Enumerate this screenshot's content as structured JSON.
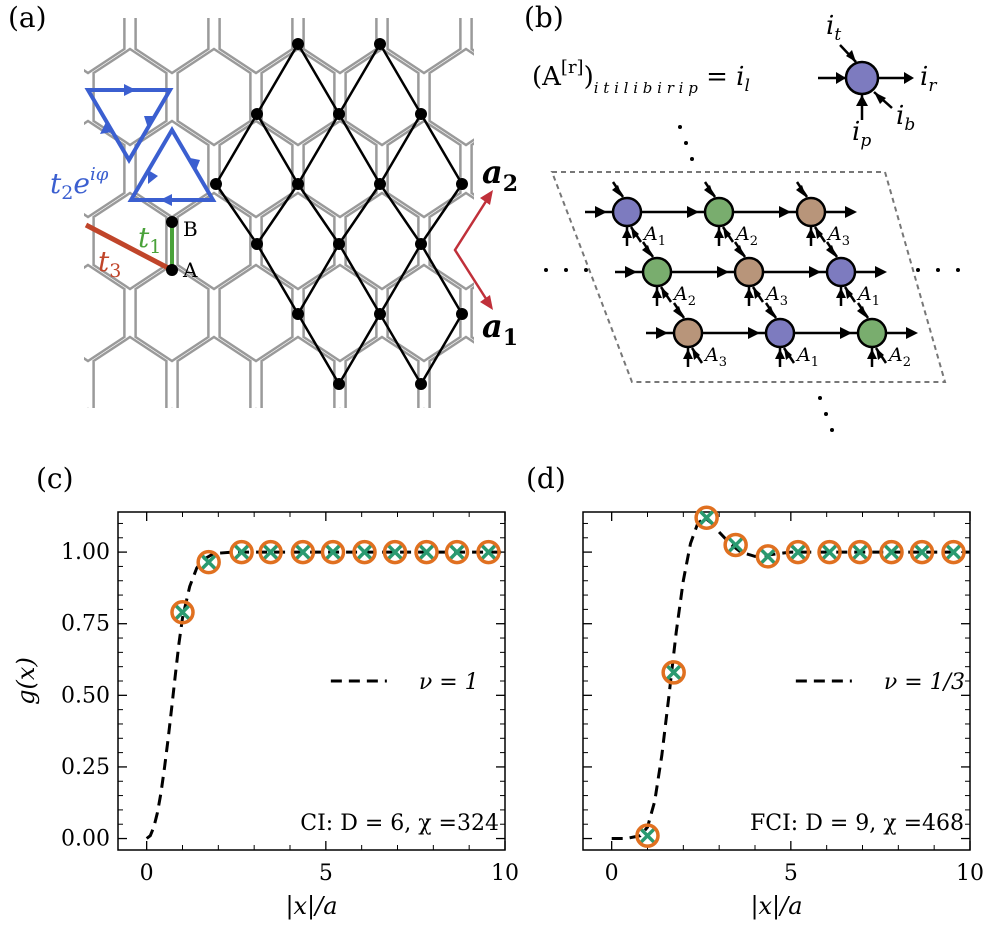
{
  "panels": {
    "a": {
      "label": "(a)"
    },
    "b": {
      "label": "(b)"
    },
    "c": {
      "label": "(c)"
    },
    "d": {
      "label": "(d)"
    }
  },
  "lattice": {
    "hopping_t2_base": "t",
    "hopping_t2_sub": "2",
    "hopping_t2_exp": "e",
    "hopping_t2_sup": "iφ",
    "hopping_t1_base": "t",
    "hopping_t1_sub": "1",
    "hopping_t3_base": "t",
    "hopping_t3_sub": "3",
    "site_a": "A",
    "site_b": "B",
    "vec_a1_base": "a",
    "vec_a1_sub": "1",
    "vec_a2_base": "a",
    "vec_a2_sub": "2",
    "colors": {
      "t1": "#4aa23a",
      "t2": "#3b5fd0",
      "t3": "#c0452a",
      "vec": "#c0303a",
      "hex": "#9a9a9a",
      "diamond": "#000000"
    }
  },
  "tensor_network": {
    "definition_lhs": "(A",
    "definition_sup": "[r]",
    "definition_close": ")",
    "definition_indices": "i t i l i b i r i p",
    "index_t": "i",
    "index_t_sub": "t",
    "index_l": "i",
    "index_l_sub": "l",
    "index_r": "i",
    "index_r_sub": "r",
    "index_b": "i",
    "index_b_sub": "b",
    "index_p": "i",
    "index_p_sub": "p",
    "tensor_labels": [
      [
        "A1",
        "A2",
        "A3"
      ],
      [
        "A2",
        "A3",
        "A1"
      ],
      [
        "A3",
        "A1",
        "A2"
      ]
    ],
    "colors": {
      "A1": "#7d7bbf",
      "A2": "#79ad6e",
      "A3": "#b8957a"
    }
  },
  "chart_data": [
    {
      "type": "line",
      "panel": "(c)",
      "xlabel": "|x|/a",
      "ylabel": "g(x)",
      "xlim": [
        -0.8,
        10
      ],
      "ylim": [
        -0.04,
        1.14
      ],
      "xticks": [
        0,
        5,
        10
      ],
      "yticks": [
        0.0,
        0.25,
        0.5,
        0.75,
        1.0
      ],
      "ytick_labels": [
        "0.00",
        "0.25",
        "0.50",
        "0.75",
        "1.00"
      ],
      "legend": "ν = 1",
      "legend_position": "center-right",
      "annotation": "CI: D = 6, χ =324",
      "curve": {
        "style": "dashed",
        "x": [
          0.0,
          0.1,
          0.2,
          0.3,
          0.4,
          0.5,
          0.6,
          0.7,
          0.8,
          0.9,
          1.0,
          1.2,
          1.4,
          1.6,
          1.8,
          2.0,
          2.3,
          2.6,
          3.0,
          4.0,
          6.0,
          8.0,
          10.0
        ],
        "y": [
          0.0,
          0.01,
          0.04,
          0.09,
          0.16,
          0.25,
          0.35,
          0.46,
          0.57,
          0.68,
          0.77,
          0.88,
          0.945,
          0.975,
          0.99,
          0.996,
          0.999,
          1.0,
          1.0,
          1.0,
          1.0,
          1.0,
          1.0
        ]
      },
      "markers": {
        "x": [
          1.0,
          1.73,
          2.65,
          3.46,
          4.36,
          5.2,
          6.08,
          6.93,
          7.81,
          8.66,
          9.54
        ],
        "y": [
          0.79,
          0.965,
          1.0,
          1.0,
          1.0,
          1.0,
          1.0,
          1.0,
          1.0,
          1.0,
          1.0
        ]
      }
    },
    {
      "type": "line",
      "panel": "(d)",
      "xlabel": "|x|/a",
      "ylabel": "",
      "xlim": [
        -0.8,
        10
      ],
      "ylim": [
        -0.04,
        1.14
      ],
      "xticks": [
        0,
        5,
        10
      ],
      "legend": "ν = 1/3",
      "legend_position": "center-right",
      "annotation": "FCI: D = 9, χ =468",
      "curve": {
        "style": "dashed",
        "x": [
          0.0,
          0.4,
          0.8,
          1.0,
          1.2,
          1.4,
          1.6,
          1.8,
          2.0,
          2.2,
          2.4,
          2.6,
          2.8,
          3.0,
          3.3,
          3.6,
          4.0,
          4.36,
          5.0,
          6.0,
          8.0,
          10.0
        ],
        "y": [
          0.0,
          0.0,
          0.01,
          0.04,
          0.13,
          0.29,
          0.5,
          0.72,
          0.9,
          1.03,
          1.1,
          1.12,
          1.1,
          1.07,
          1.03,
          1.0,
          0.985,
          0.99,
          1.0,
          1.0,
          1.0,
          1.0
        ]
      },
      "markers": {
        "x": [
          1.0,
          1.73,
          2.65,
          3.46,
          4.36,
          5.2,
          6.08,
          6.93,
          7.81,
          8.66,
          9.54
        ],
        "y": [
          0.01,
          0.58,
          1.12,
          1.025,
          0.985,
          1.0,
          1.0,
          1.0,
          1.0,
          1.0,
          1.0
        ]
      }
    }
  ],
  "style": {
    "marker_ring": "#e07020",
    "marker_cross": "#2a9a70"
  }
}
